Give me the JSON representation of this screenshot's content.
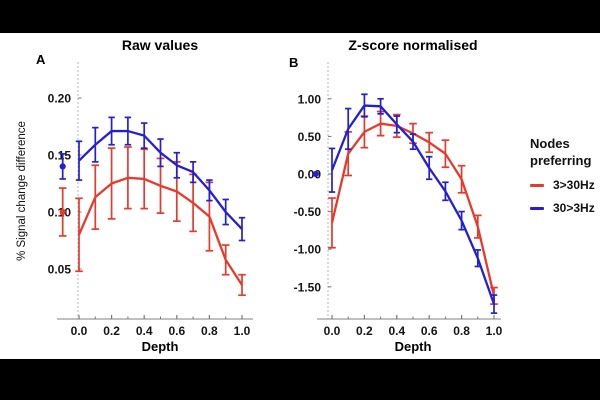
{
  "colors": {
    "red": "#e63a2d",
    "blue": "#251fd2",
    "axis_dotted": "#b5b5b5",
    "axis_solid": "#9a9a9a",
    "tick": "#777777",
    "tick_text": "#141414"
  },
  "legend": {
    "title": "Nodes preferring",
    "items": [
      {
        "label": "3>30Hz",
        "color": "red"
      },
      {
        "label": "30>3Hz",
        "color": "blue"
      }
    ]
  },
  "chart_data": [
    {
      "type": "line",
      "panel_label": "A",
      "title": "Raw values",
      "xlabel": "Depth",
      "ylabel": "% Signal change difference",
      "x": [
        0.0,
        0.1,
        0.2,
        0.3,
        0.4,
        0.5,
        0.6,
        0.7,
        0.8,
        0.9,
        1.0
      ],
      "xlim": [
        -0.18,
        1.08
      ],
      "ylim": [
        0.02,
        0.215
      ],
      "grid": false,
      "xticks": [
        {
          "v": 0.0,
          "label": "0.0"
        },
        {
          "v": 0.2,
          "label": "0.2"
        },
        {
          "v": 0.4,
          "label": "0.4"
        },
        {
          "v": 0.6,
          "label": "0.6"
        },
        {
          "v": 0.8,
          "label": "0.8"
        },
        {
          "v": 1.0,
          "label": "1.0"
        }
      ],
      "xticks_minor": [
        0.1,
        0.3,
        0.5,
        0.7,
        0.9
      ],
      "yticks": [
        {
          "v": 0.05,
          "label": "0.05"
        },
        {
          "v": 0.1,
          "label": "0.10"
        },
        {
          "v": 0.15,
          "label": "0.15"
        },
        {
          "v": 0.2,
          "label": "0.20"
        }
      ],
      "series": [
        {
          "name": "3>30Hz",
          "color": "red",
          "values": [
            0.08,
            0.113,
            0.125,
            0.13,
            0.129,
            0.123,
            0.118,
            0.108,
            0.096,
            0.058,
            0.036
          ],
          "errors": [
            0.032,
            0.028,
            0.031,
            0.027,
            0.026,
            0.024,
            0.026,
            0.025,
            0.03,
            0.013,
            0.009
          ],
          "isolated_point": {
            "x": -0.1,
            "value": 0.1,
            "error": 0.021
          }
        },
        {
          "name": "30>3Hz",
          "color": "blue",
          "values": [
            0.145,
            0.159,
            0.171,
            0.171,
            0.167,
            0.152,
            0.141,
            0.135,
            0.119,
            0.1,
            0.085
          ],
          "errors": [
            0.017,
            0.015,
            0.012,
            0.012,
            0.011,
            0.012,
            0.011,
            0.009,
            0.009,
            0.011,
            0.01
          ],
          "isolated_point": {
            "x": -0.1,
            "value": 0.14,
            "error": 0.011
          }
        }
      ]
    },
    {
      "type": "line",
      "panel_label": "B",
      "title": "Z-score normalised",
      "xlabel": "Depth",
      "ylabel": "",
      "x": [
        0.0,
        0.1,
        0.2,
        0.3,
        0.4,
        0.5,
        0.6,
        0.7,
        0.8,
        0.9,
        1.0
      ],
      "xlim": [
        -0.18,
        1.08
      ],
      "ylim": [
        -1.95,
        1.35
      ],
      "grid": false,
      "xticks": [
        {
          "v": 0.0,
          "label": "0.0"
        },
        {
          "v": 0.2,
          "label": "0.2"
        },
        {
          "v": 0.4,
          "label": "0.4"
        },
        {
          "v": 0.6,
          "label": "0.6"
        },
        {
          "v": 0.8,
          "label": "0.8"
        },
        {
          "v": 1.0,
          "label": "1.0"
        }
      ],
      "xticks_minor": [
        0.1,
        0.3,
        0.5,
        0.7,
        0.9
      ],
      "yticks": [
        {
          "v": 1.0,
          "label": "1.00"
        },
        {
          "v": 0.5,
          "label": "0.50"
        },
        {
          "v": 0.0,
          "label": "0.00"
        },
        {
          "v": -0.5,
          "label": "-0.50"
        },
        {
          "v": -1.0,
          "label": "-1.00"
        },
        {
          "v": -1.5,
          "label": "-1.50"
        }
      ],
      "series": [
        {
          "name": "3>30Hz",
          "color": "red",
          "values": [
            -0.65,
            0.27,
            0.56,
            0.67,
            0.64,
            0.54,
            0.42,
            0.27,
            -0.07,
            -0.7,
            -1.62
          ],
          "errors": [
            0.33,
            0.29,
            0.21,
            0.16,
            0.15,
            0.13,
            0.13,
            0.18,
            0.18,
            0.15,
            0.11
          ]
        },
        {
          "name": "30>3Hz",
          "color": "blue",
          "values": [
            0.05,
            0.6,
            0.91,
            0.9,
            0.66,
            0.43,
            0.08,
            -0.23,
            -0.62,
            -1.12,
            -1.73
          ],
          "errors": [
            0.29,
            0.27,
            0.15,
            0.1,
            0.11,
            0.1,
            0.15,
            0.12,
            0.12,
            0.11,
            0.12
          ],
          "isolated_point": {
            "x": -0.1,
            "value": 0.0,
            "error": 0
          }
        }
      ]
    }
  ]
}
